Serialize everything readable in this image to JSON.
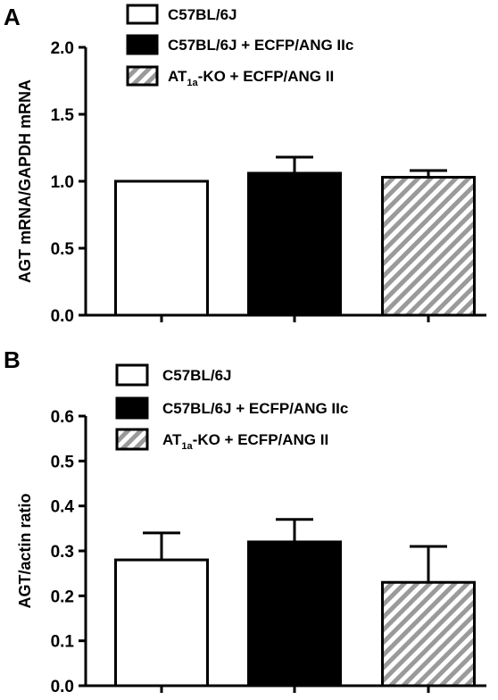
{
  "colors": {
    "ink": "#000000",
    "white": "#ffffff",
    "hatch": "#9a9a9a"
  },
  "chart_data": [
    {
      "type": "bar",
      "panel": "A",
      "ylabel": "AGT mRNA/GAPDH mRNA",
      "xlabel": "",
      "ylim": [
        0,
        2.0
      ],
      "yticks": [
        "0.0",
        "0.5",
        "1.0",
        "1.5",
        "2.0"
      ],
      "grid": false,
      "legend_position": "top",
      "legend": [
        {
          "label": "C57BL/6J",
          "fill": "white"
        },
        {
          "label": "C57BL/6J + ECFP/ANG IIc",
          "fill": "black"
        },
        {
          "label_main": "AT",
          "label_sub": "1a",
          "label_rest": "-KO + ECFP/ANG II",
          "fill": "hatch"
        }
      ],
      "bars": [
        {
          "group": "C57BL/6J",
          "value": 1.0,
          "error": 0.0,
          "fill": "white"
        },
        {
          "group": "C57BL/6J + ECFP/ANG IIc",
          "value": 1.06,
          "error": 0.12,
          "fill": "black"
        },
        {
          "group": "AT1a-KO + ECFP/ANG II",
          "value": 1.03,
          "error": 0.05,
          "fill": "hatch"
        }
      ]
    },
    {
      "type": "bar",
      "panel": "B",
      "ylabel": "AGT/actin ratio",
      "xlabel": "",
      "ylim": [
        0,
        0.6
      ],
      "yticks": [
        "0.0",
        "0.1",
        "0.2",
        "0.3",
        "0.4",
        "0.5",
        "0.6"
      ],
      "grid": false,
      "legend_position": "top",
      "legend": [
        {
          "label": "C57BL/6J",
          "fill": "white"
        },
        {
          "label": "C57BL/6J + ECFP/ANG IIc",
          "fill": "black"
        },
        {
          "label_main": "AT",
          "label_sub": "1a",
          "label_rest": "-KO + ECFP/ANG II",
          "fill": "hatch"
        }
      ],
      "bars": [
        {
          "group": "C57BL/6J",
          "value": 0.28,
          "error": 0.06,
          "fill": "white"
        },
        {
          "group": "C57BL/6J + ECFP/ANG IIc",
          "value": 0.32,
          "error": 0.05,
          "fill": "black"
        },
        {
          "group": "AT1a-KO + ECFP/ANG II",
          "value": 0.23,
          "error": 0.08,
          "fill": "hatch"
        }
      ]
    }
  ]
}
